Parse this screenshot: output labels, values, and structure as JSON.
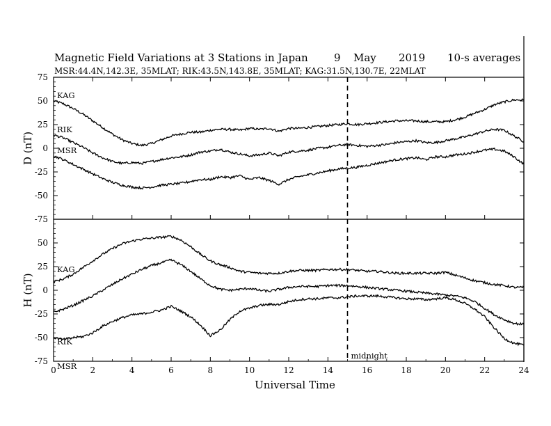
{
  "chart_data": {
    "type": "line",
    "title": {
      "main": "Magnetic Field Variations at 3 Stations in Japan",
      "day": "9",
      "month": "May",
      "year": "2019",
      "resolution": "10-s averages"
    },
    "subtitle": "MSR:44.4N,142.3E, 35MLAT;  RIK:43.5N,143.8E, 35MLAT;  KAG:31.5N,130.7E, 22MLAT",
    "xlabel": "Universal Time",
    "xlim": [
      0,
      24
    ],
    "x_ticks": [
      0,
      2,
      4,
      6,
      8,
      10,
      12,
      14,
      16,
      18,
      20,
      22,
      24
    ],
    "annotation": {
      "x": 15,
      "label": "midnight"
    },
    "panels": [
      {
        "ylabel": "D (nT)",
        "ylim": [
          -75,
          75
        ],
        "y_ticks": [
          75,
          50,
          25,
          0,
          -25,
          -50,
          -75
        ],
        "series": [
          {
            "name": "KAG",
            "x": [
              0,
              0.5,
              1,
              1.5,
              2,
              2.5,
              3,
              3.5,
              4,
              4.5,
              5,
              5.5,
              6,
              6.5,
              7,
              7.5,
              8,
              8.5,
              9,
              9.5,
              10,
              10.5,
              11,
              11.5,
              12,
              12.5,
              13,
              13.5,
              14,
              14.5,
              15,
              15.5,
              16,
              16.5,
              17,
              17.5,
              18,
              18.5,
              19,
              19.5,
              20,
              20.5,
              21,
              21.5,
              22,
              22.5,
              23,
              23.5,
              24
            ],
            "values": [
              50,
              47,
              42,
              36,
              29,
              22,
              15,
              9,
              5,
              3,
              5,
              9,
              13,
              15,
              17,
              17,
              19,
              20,
              20,
              19,
              21,
              20,
              21,
              18,
              21,
              21,
              22,
              23,
              24,
              25,
              26,
              25,
              26,
              27,
              28,
              29,
              29,
              29,
              28,
              28,
              28,
              30,
              33,
              37,
              41,
              46,
              49,
              51,
              51
            ]
          },
          {
            "name": "RIK",
            "x": [
              0,
              0.5,
              1,
              1.5,
              2,
              2.5,
              3,
              3.5,
              4,
              4.5,
              5,
              5.5,
              6,
              6.5,
              7,
              7.5,
              8,
              8.5,
              9,
              9.5,
              10,
              10.5,
              11,
              11.5,
              12,
              12.5,
              13,
              13.5,
              14,
              14.5,
              15,
              15.5,
              16,
              16.5,
              17,
              17.5,
              18,
              18.5,
              19,
              19.5,
              20,
              20.5,
              21,
              21.5,
              22,
              22.5,
              23,
              23.5,
              24
            ],
            "values": [
              14,
              11,
              6,
              1,
              -5,
              -10,
              -14,
              -16,
              -15,
              -16,
              -14,
              -12,
              -10,
              -9,
              -7,
              -4,
              -3,
              -1,
              -4,
              -6,
              -8,
              -7,
              -5,
              -8,
              -4,
              -3,
              -2,
              0,
              1,
              3,
              4,
              3,
              2,
              3,
              4,
              6,
              7,
              8,
              6,
              6,
              8,
              10,
              12,
              15,
              18,
              20,
              19,
              13,
              7
            ]
          },
          {
            "name": "MSR",
            "x": [
              0,
              0.5,
              1,
              1.5,
              2,
              2.5,
              3,
              3.5,
              4,
              4.5,
              5,
              5.5,
              6,
              6.5,
              7,
              7.5,
              8,
              8.5,
              9,
              9.5,
              10,
              10.5,
              11,
              11.5,
              12,
              12.5,
              13,
              13.5,
              14,
              14.5,
              15,
              15.5,
              16,
              16.5,
              17,
              17.5,
              18,
              18.5,
              19,
              19.5,
              20,
              20.5,
              21,
              21.5,
              22,
              22.5,
              23,
              23.5,
              24
            ],
            "values": [
              -8,
              -12,
              -17,
              -22,
              -27,
              -32,
              -36,
              -39,
              -41,
              -42,
              -41,
              -39,
              -38,
              -37,
              -35,
              -33,
              -33,
              -30,
              -31,
              -29,
              -33,
              -31,
              -34,
              -38,
              -33,
              -30,
              -28,
              -26,
              -24,
              -22,
              -21,
              -20,
              -18,
              -16,
              -14,
              -12,
              -11,
              -10,
              -12,
              -9,
              -9,
              -7,
              -6,
              -4,
              -2,
              -1,
              -3,
              -9,
              -17
            ]
          }
        ]
      },
      {
        "ylabel": "H (nT)",
        "ylim": [
          -75,
          75
        ],
        "y_ticks": [
          75,
          50,
          25,
          0,
          -25,
          -50,
          -75
        ],
        "series": [
          {
            "name": "KAG",
            "x": [
              0,
              0.5,
              1,
              1.5,
              2,
              2.5,
              3,
              3.5,
              4,
              4.5,
              5,
              5.5,
              6,
              6.5,
              7,
              7.5,
              8,
              8.5,
              9,
              9.5,
              10,
              10.5,
              11,
              11.5,
              12,
              12.5,
              13,
              13.5,
              14,
              14.5,
              15,
              15.5,
              16,
              16.5,
              17,
              17.5,
              18,
              18.5,
              19,
              19.5,
              20,
              20.5,
              21,
              21.5,
              22,
              22.5,
              23,
              23.5,
              24
            ],
            "values": [
              9,
              12,
              17,
              24,
              31,
              38,
              44,
              49,
              52,
              54,
              55,
              56,
              57,
              53,
              46,
              38,
              31,
              27,
              24,
              20,
              19,
              18,
              18,
              18,
              20,
              21,
              21,
              21,
              22,
              22,
              22,
              21,
              20,
              20,
              19,
              18,
              18,
              18,
              18,
              18,
              19,
              16,
              13,
              10,
              8,
              6,
              5,
              3,
              3
            ]
          },
          {
            "name": "RIK",
            "x": [
              0,
              0.5,
              1,
              1.5,
              2,
              2.5,
              3,
              3.5,
              4,
              4.5,
              5,
              5.5,
              6,
              6.5,
              7,
              7.5,
              8,
              8.5,
              9,
              9.5,
              10,
              10.5,
              11,
              11.5,
              12,
              12.5,
              13,
              13.5,
              14,
              14.5,
              15,
              15.5,
              16,
              16.5,
              17,
              17.5,
              18,
              18.5,
              19,
              19.5,
              20,
              20.5,
              21,
              21.5,
              22,
              22.5,
              23,
              23.5,
              24
            ],
            "values": [
              -23,
              -20,
              -16,
              -11,
              -6,
              0,
              6,
              12,
              17,
              22,
              26,
              29,
              32,
              27,
              20,
              12,
              5,
              1,
              0,
              1,
              2,
              0,
              -1,
              1,
              3,
              4,
              4,
              4,
              5,
              5,
              5,
              4,
              3,
              2,
              1,
              0,
              -1,
              -2,
              -3,
              -4,
              -5,
              -6,
              -8,
              -12,
              -19,
              -26,
              -31,
              -35,
              -36
            ]
          },
          {
            "name": "MSR",
            "x": [
              0,
              0.5,
              1,
              1.5,
              2,
              2.5,
              3,
              3.5,
              4,
              4.5,
              5,
              5.5,
              6,
              6.5,
              7,
              7.5,
              8,
              8.5,
              9,
              9.5,
              10,
              10.5,
              11,
              11.5,
              12,
              12.5,
              13,
              13.5,
              14,
              14.5,
              15,
              15.5,
              16,
              16.5,
              17,
              17.5,
              18,
              18.5,
              19,
              19.5,
              20,
              20.5,
              21,
              21.5,
              22,
              22.5,
              23,
              23.5,
              24
            ],
            "values": [
              -50,
              -52,
              -50,
              -49,
              -45,
              -38,
              -33,
              -29,
              -26,
              -25,
              -23,
              -21,
              -17,
              -22,
              -28,
              -37,
              -48,
              -42,
              -31,
              -22,
              -19,
              -16,
              -15,
              -15,
              -12,
              -10,
              -9,
              -9,
              -8,
              -8,
              -7,
              -6,
              -6,
              -6,
              -7,
              -8,
              -9,
              -9,
              -10,
              -9,
              -8,
              -10,
              -14,
              -20,
              -28,
              -40,
              -51,
              -56,
              -58
            ]
          }
        ]
      }
    ]
  }
}
